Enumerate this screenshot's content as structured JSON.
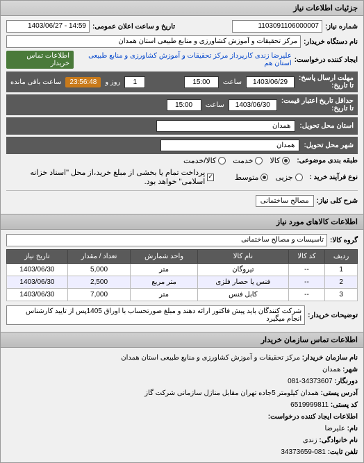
{
  "panel": {
    "title": "جزئیات اطلاعات نیاز"
  },
  "header": {
    "need_number_label": "شماره نیاز:",
    "need_number": "1103091106000007",
    "announce_label": "تاریخ و ساعت اعلان عمومی:",
    "announce_value": "14:59 - 1403/06/27",
    "buyer_org_label": "نام دستگاه خریدار:",
    "buyer_org": "مرکز تحقیقات و آموزش کشاورزی و منابع طبیعی استان همدان",
    "creator_label": "ایجاد کننده درخواست:",
    "creator": "علیرضا زندی کارپرداز مرکز تحقیقات و آموزش کشاورزی و منابع طبیعی استان هم",
    "contact_link": "اطلاعات تماس خریدار"
  },
  "deadlines": {
    "reply_deadline_label": "مهلت ارسال پاسخ:",
    "until_label": "تا تاریخ:",
    "reply_date": "1403/06/29",
    "time_label": "ساعت",
    "reply_time": "15:00",
    "day_label": "روز و",
    "days": "1",
    "remaining": "23:56:48",
    "remaining_label": "ساعت باقی مانده",
    "price_validity_label": "حداقل تاریخ اعتبار قیمت:",
    "price_date": "1403/06/30",
    "price_time": "15:00",
    "delivery_province_label": "استان محل تحویل:",
    "delivery_province": "همدان",
    "delivery_city_label": "شهر محل تحویل:",
    "delivery_city": "همدان"
  },
  "classification": {
    "subject_class_label": "طبقه بندی موضوعی:",
    "kala": "کالا",
    "khadamat": "خدمت",
    "kala_khadamat": "کالا/خدمت",
    "purchase_type_label": "نوع فرآیند خرید :",
    "small": "جزیی",
    "medium": "متوسط",
    "payment_note": "پرداخت تمام یا بخشی از مبلغ خرید،از محل \"اسناد خزانه اسلامی\" خواهد بود."
  },
  "need": {
    "title_label": "شرح کلی نیاز:",
    "title": "مصالح ساختمانی",
    "section_title": "اطلاعات کالاهای مورد نیاز",
    "group_label": "گروه کالا:",
    "group": "تاسیسات و مصالح ساختمانی"
  },
  "table": {
    "headers": {
      "row": "ردیف",
      "code": "کد کالا",
      "name": "نام کالا",
      "unit": "واحد شمارش",
      "qty": "تعداد / مقدار",
      "date": "تاریخ نیاز"
    },
    "rows": [
      {
        "n": "1",
        "code": "--",
        "name": "تیروگان",
        "unit": "متر",
        "qty": "5,000",
        "date": "1403/06/30"
      },
      {
        "n": "2",
        "code": "--",
        "name": "فنس یا حصار فلزی",
        "unit": "متر مربع",
        "qty": "2,500",
        "date": "1403/06/30"
      },
      {
        "n": "3",
        "code": "--",
        "name": "کابل فنس",
        "unit": "متر",
        "qty": "7,000",
        "date": "1403/06/30"
      }
    ]
  },
  "buyer_notes": {
    "label": "توضیحات خریدار:",
    "text": "شرکت کنندگان باید پیش فاکتور ارائه دهند و مبلغ صورتحساب با اوراق 1405پس از تایید کارشناس انجام میگیرد"
  },
  "contact": {
    "section_title": "اطلاعات تماس سازمان خریدار",
    "org_label": "نام سازمان خریدار:",
    "org": "مرکز تحقیقات و آموزش کشاورزی و منابع طبیعی استان همدان",
    "city_label": "شهر:",
    "city": "همدان",
    "fax_label": "دورنگار:",
    "fax": "34373607-081",
    "postal_addr_label": "آدرس پستی:",
    "postal_addr": "همدان کیلومتر 5جاده تهران مقابل منازل سازمانی شرکت گاز",
    "postal_code_label": "کد پستی:",
    "postal_code": "6519999811",
    "requester_section": "اطلاعات ایجاد کننده درخواست:",
    "name_label": "نام:",
    "name": "علیرضا",
    "family_label": "نام خانوادگی:",
    "family": "زندی",
    "phone_label": "تلفن ثابت:",
    "phone": "081-34373659"
  }
}
